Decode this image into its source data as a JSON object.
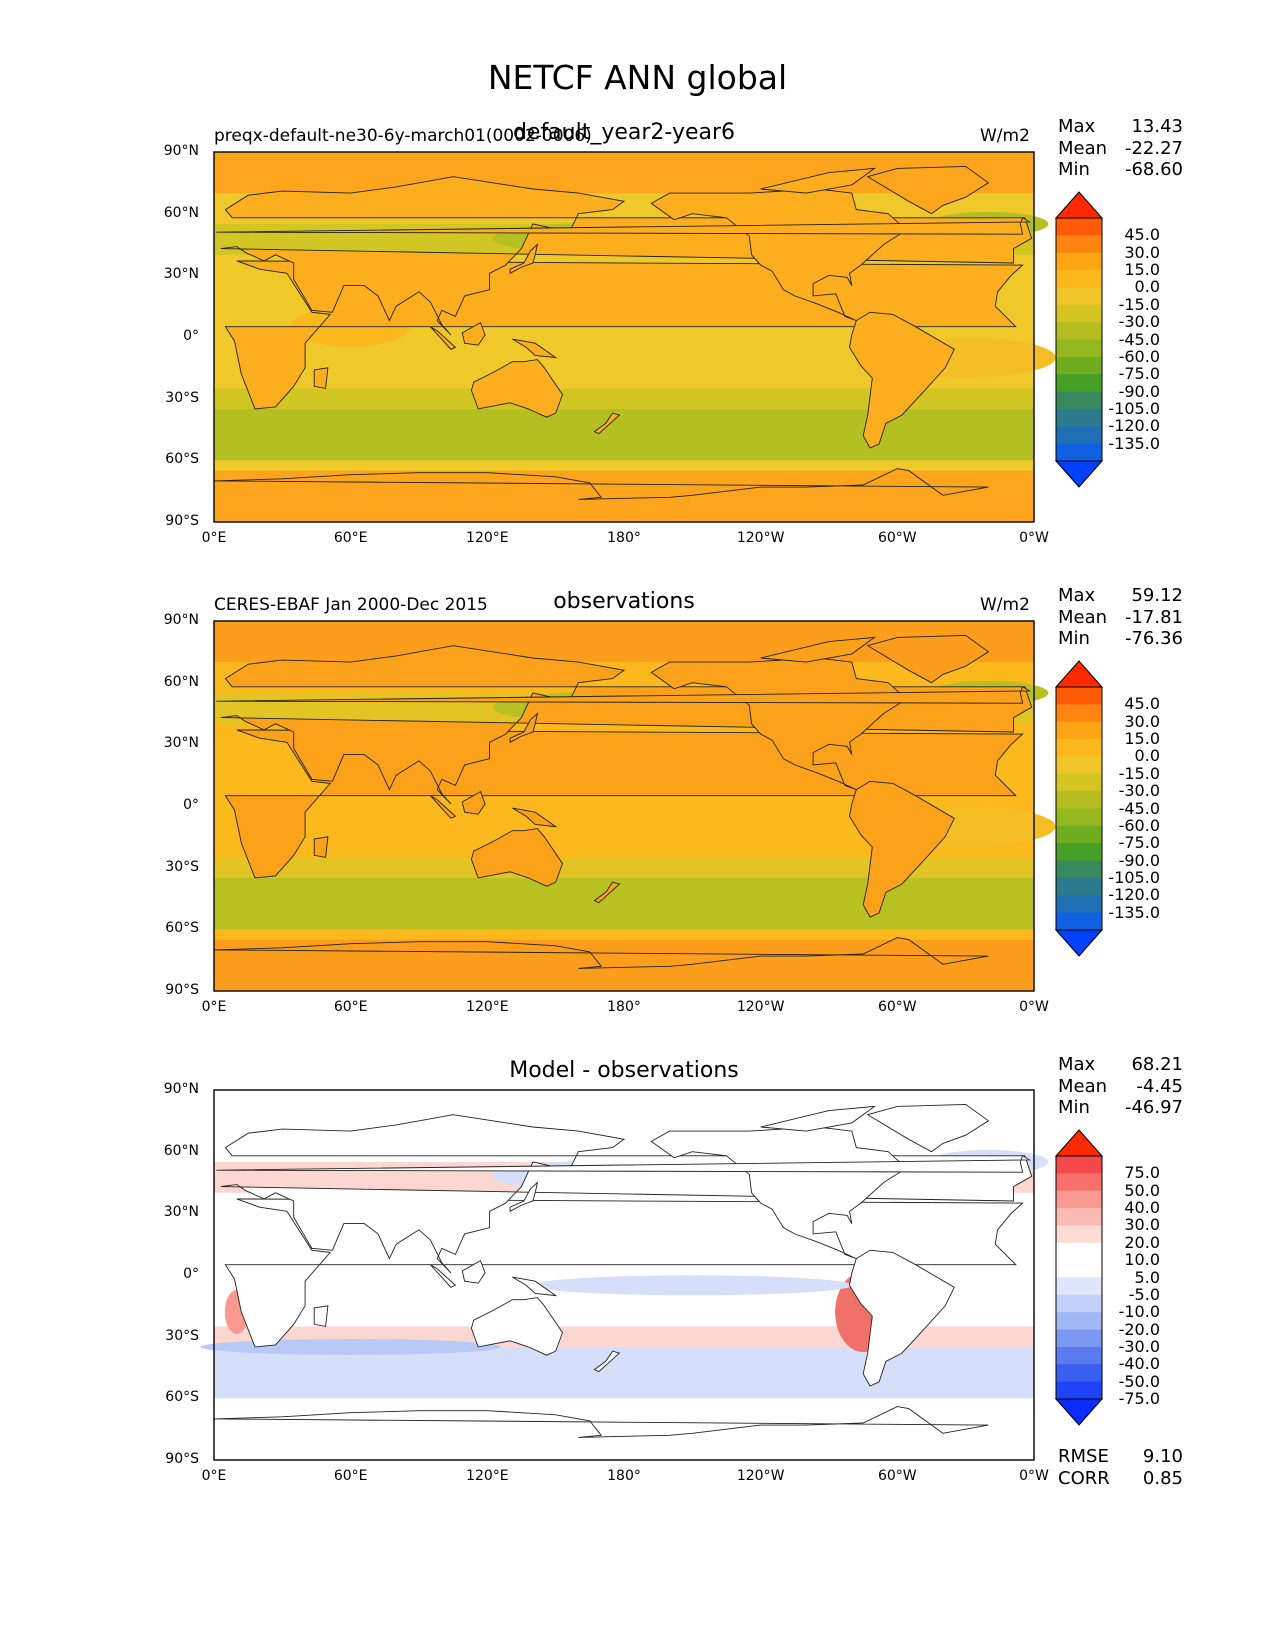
{
  "figure_title": "NETCF ANN global",
  "lat_labels": [
    "90°N",
    "60°N",
    "30°N",
    "0°",
    "30°S",
    "60°S",
    "90°S"
  ],
  "lon_labels": [
    "0°E",
    "60°E",
    "120°E",
    "180°",
    "120°W",
    "60°W",
    "0°W"
  ],
  "panels": [
    {
      "left_title": "preqx-default-ne30-6y-march01(0002-0006)",
      "main_title": "default_year2-year6",
      "units": "W/m2",
      "stats": {
        "max_label": "Max",
        "max": "13.43",
        "mean_label": "Mean",
        "mean": "-22.27",
        "min_label": "Min",
        "min": "-68.60"
      },
      "colorbar": {
        "labels": [
          "45.0",
          "30.0",
          "15.0",
          "0.0",
          "-15.0",
          "-30.0",
          "-45.0",
          "-60.0",
          "-75.0",
          "-90.0",
          "-105.0",
          "-120.0",
          "-135.0"
        ],
        "colors": [
          "#ff2a00",
          "#ff5a08",
          "#ff8410",
          "#ffa516",
          "#fbb91e",
          "#f0c52a",
          "#d4c524",
          "#b6bd20",
          "#95b820",
          "#6fac20",
          "#46a028",
          "#388a5e",
          "#2c7a8c",
          "#1f6fb4",
          "#1060e4",
          "#0040ff"
        ]
      },
      "map_palette": {
        "ocean": "#efc82a",
        "land": "#fcae1e",
        "polar": "#fda51c",
        "storm": "#b4c022",
        "band": "#d2c625",
        "deep": "#a0bb22"
      }
    },
    {
      "left_title": "CERES-EBAF Jan 2000-Dec 2015",
      "main_title": "observations",
      "units": "W/m2",
      "stats": {
        "max_label": "Max",
        "max": "59.12",
        "mean_label": "Mean",
        "mean": "-17.81",
        "min_label": "Min",
        "min": "-76.36"
      },
      "colorbar": {
        "labels": [
          "45.0",
          "30.0",
          "15.0",
          "0.0",
          "-15.0",
          "-30.0",
          "-45.0",
          "-60.0",
          "-75.0",
          "-90.0",
          "-105.0",
          "-120.0",
          "-135.0"
        ],
        "colors": [
          "#ff2a00",
          "#ff5a08",
          "#ff8410",
          "#ffa516",
          "#fbb91e",
          "#f0c52a",
          "#d4c524",
          "#b6bd20",
          "#95b820",
          "#6fac20",
          "#46a028",
          "#388a5e",
          "#2c7a8c",
          "#1f6fb4",
          "#1060e4",
          "#0040ff"
        ]
      },
      "map_palette": {
        "ocean": "#fbb91e",
        "land": "#fca21a",
        "polar": "#fd9d1c",
        "storm": "#b8c022",
        "band": "#e2c524",
        "deep": "#9cba22"
      }
    },
    {
      "left_title": "",
      "main_title": "Model - observations",
      "units": "",
      "stats": {
        "max_label": "Max",
        "max": "68.21",
        "mean_label": "Mean",
        "mean": "-4.45",
        "min_label": "Min",
        "min": "-46.97"
      },
      "colorbar": {
        "labels": [
          "75.0",
          "50.0",
          "40.0",
          "30.0",
          "20.0",
          "10.0",
          "5.0",
          "-5.0",
          "-10.0",
          "-20.0",
          "-30.0",
          "-40.0",
          "-50.0",
          "-75.0"
        ],
        "colors": [
          "#ff2a00",
          "#f4484a",
          "#f6706c",
          "#f99a90",
          "#fbbab2",
          "#fddcd6",
          "#ffffff",
          "#ffffff",
          "#dfe6fb",
          "#c3d1fa",
          "#a3b8f6",
          "#7d98f1",
          "#5a7bee",
          "#3a5ef0",
          "#1f43f8",
          "#0a2cff"
        ]
      },
      "map_palette": {
        "ocean": "#ffffff",
        "land": "#ffffff",
        "polar": "#ffffff",
        "storm": "#d6dff9",
        "band": "#fcd7d2",
        "deep": "#b9c9f7"
      },
      "bottom_stats": {
        "rmse_label": "RMSE",
        "rmse": "9.10",
        "corr_label": "CORR",
        "corr": "0.85"
      }
    }
  ]
}
